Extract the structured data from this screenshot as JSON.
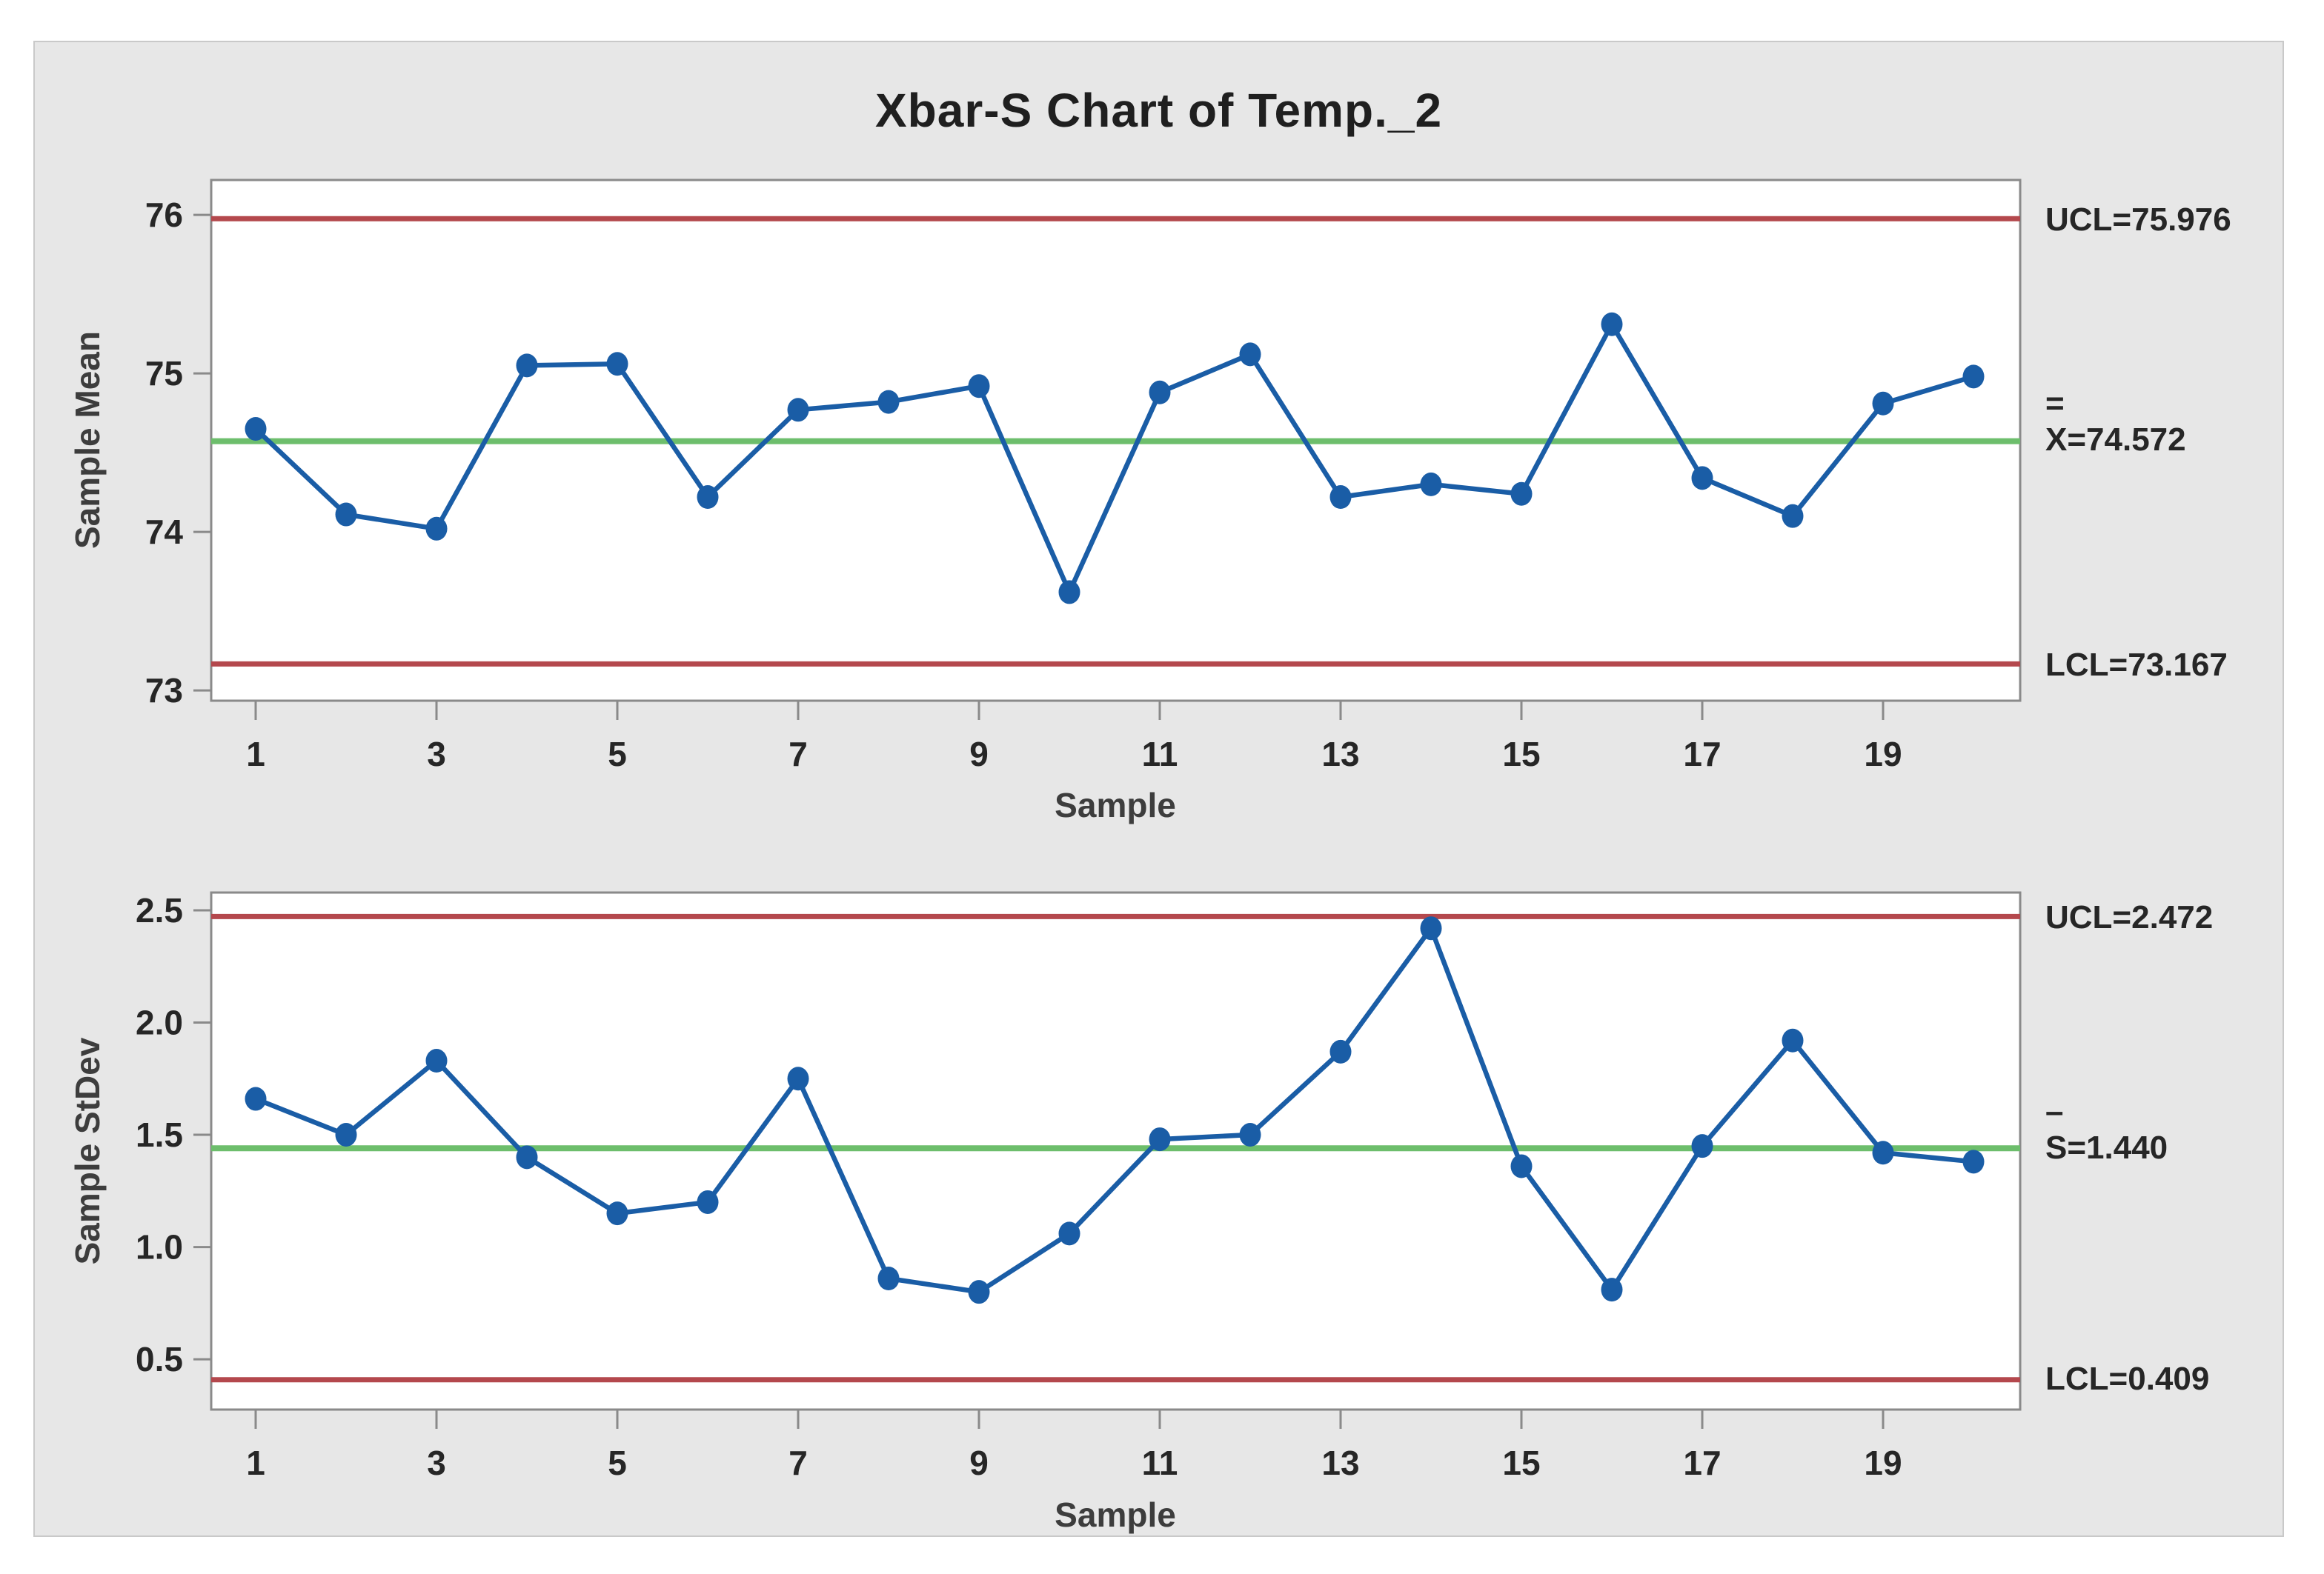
{
  "title": "Xbar-S Chart of Temp._2",
  "colors": {
    "panel_background": "#e7e7e7",
    "plot_background": "#ffffff",
    "frame": "#8a8a8a",
    "series_blue": "#1a5da6",
    "control_limit_red": "#b4484d",
    "center_line_green": "#6dbe6c",
    "text": "#262626"
  },
  "chart_data": [
    {
      "type": "line",
      "name": "xbar-chart",
      "ylabel": "Sample Mean",
      "xlabel": "Sample",
      "x": [
        1,
        2,
        3,
        4,
        5,
        6,
        7,
        8,
        9,
        10,
        11,
        12,
        13,
        14,
        15,
        16,
        17,
        18,
        19,
        20
      ],
      "x_tick_values": [
        1,
        3,
        5,
        7,
        9,
        11,
        13,
        15,
        17,
        19
      ],
      "x_tick_labels": [
        "1",
        "3",
        "5",
        "7",
        "9",
        "11",
        "13",
        "15",
        "17",
        "19"
      ],
      "y_tick_values": [
        73,
        74,
        75,
        76
      ],
      "y_tick_labels": [
        "73",
        "74",
        "75",
        "76"
      ],
      "ylim": [
        72.935,
        76.22
      ],
      "series": [
        {
          "name": "Sample Mean",
          "values": [
            74.65,
            74.11,
            74.02,
            75.05,
            75.06,
            74.22,
            74.77,
            74.82,
            74.92,
            73.62,
            74.88,
            75.12,
            74.22,
            74.3,
            74.24,
            75.31,
            74.34,
            74.1,
            74.81,
            74.98
          ]
        }
      ],
      "control_lines": {
        "ucl": {
          "value": 75.976,
          "label": "UCL=75.976"
        },
        "center": {
          "value": 74.572,
          "label": "X=74.572",
          "bar_glyph": "="
        },
        "lcl": {
          "value": 73.167,
          "label": "LCL=73.167"
        }
      },
      "legend_position": "right",
      "grid": false
    },
    {
      "type": "line",
      "name": "s-chart",
      "ylabel": "Sample StDev",
      "xlabel": "Sample",
      "x": [
        1,
        2,
        3,
        4,
        5,
        6,
        7,
        8,
        9,
        10,
        11,
        12,
        13,
        14,
        15,
        16,
        17,
        18,
        19,
        20
      ],
      "x_tick_values": [
        1,
        3,
        5,
        7,
        9,
        11,
        13,
        15,
        17,
        19
      ],
      "x_tick_labels": [
        "1",
        "3",
        "5",
        "7",
        "9",
        "11",
        "13",
        "15",
        "17",
        "19"
      ],
      "y_tick_values": [
        0.5,
        1.0,
        1.5,
        2.0,
        2.5
      ],
      "y_tick_labels": [
        "0.5",
        "1.0",
        "1.5",
        "2.0",
        "2.5"
      ],
      "ylim": [
        0.276,
        2.579
      ],
      "series": [
        {
          "name": "Sample StDev",
          "values": [
            1.66,
            1.5,
            1.83,
            1.4,
            1.15,
            1.2,
            1.75,
            0.86,
            0.8,
            1.06,
            1.48,
            1.5,
            1.87,
            2.42,
            1.36,
            0.81,
            1.45,
            1.92,
            1.42,
            1.38
          ]
        }
      ],
      "control_lines": {
        "ucl": {
          "value": 2.472,
          "label": "UCL=2.472"
        },
        "center": {
          "value": 1.44,
          "label": "S=1.440",
          "bar_glyph": "–"
        },
        "lcl": {
          "value": 0.409,
          "label": "LCL=0.409"
        }
      },
      "legend_position": "right",
      "grid": false
    }
  ]
}
